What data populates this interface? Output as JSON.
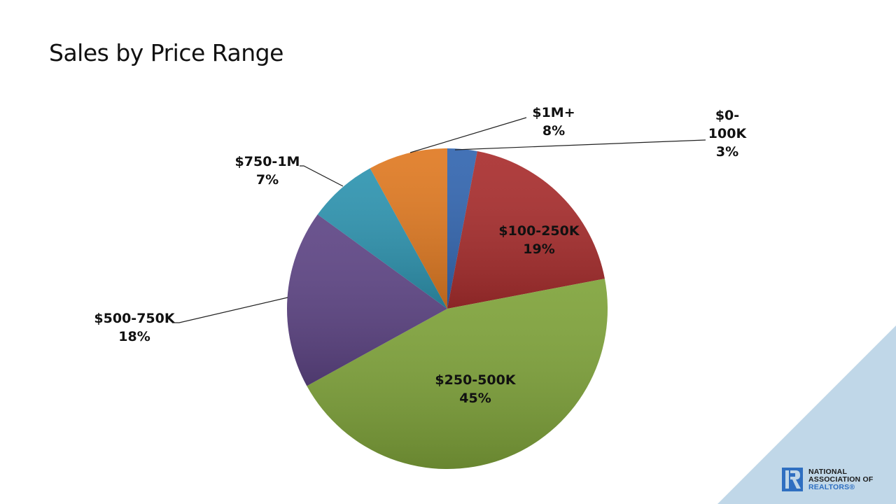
{
  "slide": {
    "title": "Sales by Price Range",
    "background_color": "#ffffff",
    "corner_color": "#c0d7e8"
  },
  "logo": {
    "line1": "NATIONAL",
    "line2": "ASSOCIATION OF",
    "line3": "REALTORS®",
    "mark_color": "#2f6fc1"
  },
  "labels": [
    {
      "name": "$0-100K",
      "line1": "$0-",
      "line2": "100K",
      "line3": "3%"
    },
    {
      "name": "$100-250K",
      "line1": "$100-250K",
      "line2": "19%"
    },
    {
      "name": "$250-500K",
      "line1": "$250-500K",
      "line2": "45%"
    },
    {
      "name": "$500-750K",
      "line1": "$500-750K",
      "line2": "18%"
    },
    {
      "name": "$750-1M",
      "line1": "$750-1M",
      "line2": "7%"
    },
    {
      "name": "$1M+",
      "line1": "$1M+",
      "line2": "8%"
    }
  ],
  "chart_data": {
    "type": "pie",
    "title": "Sales by Price Range",
    "categories": [
      "$0-100K",
      "$100-250K",
      "$250-500K",
      "$500-750K",
      "$750-1M",
      "$1M+"
    ],
    "values": [
      3,
      19,
      45,
      18,
      7,
      8
    ],
    "unit": "%",
    "colors": [
      "#3366b0",
      "#a92e2e",
      "#7fa33a",
      "#5e4585",
      "#2e94b0",
      "#e07a22"
    ],
    "start_angle_deg": 0,
    "direction": "clockwise",
    "legend": "none",
    "data_labels": "category name and percentage"
  }
}
